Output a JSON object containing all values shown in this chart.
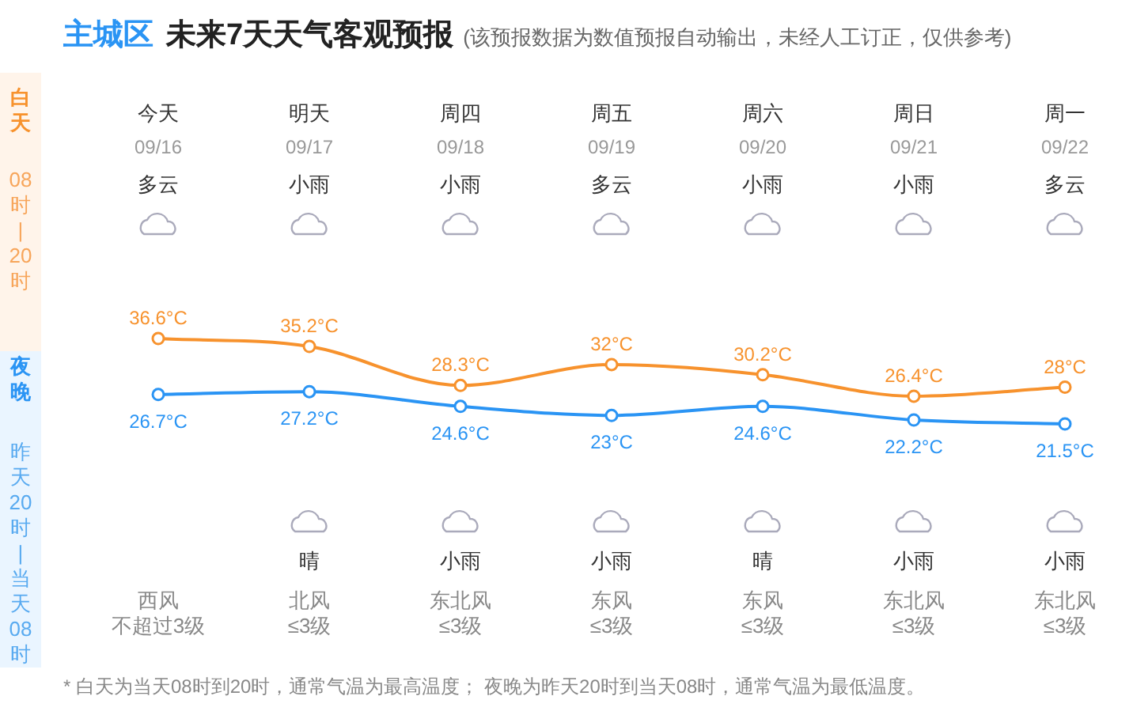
{
  "chart_data": {
    "type": "line",
    "title": "主城区 未来7天天气客观预报",
    "subtitle": "(该预报数据为数值预报自动输出，未经人工订正，仅供参考)",
    "categories": [
      "今天",
      "明天",
      "周四",
      "周五",
      "周六",
      "周日",
      "周一"
    ],
    "series": [
      {
        "color": "#f7922d",
        "values": [
          36.6,
          35.2,
          28.3,
          32,
          30.2,
          26.4,
          28
        ],
        "value_labels": [
          "36.6°C",
          "35.2°C",
          "28.3°C",
          "32°C",
          "30.2°C",
          "26.4°C",
          "28°C"
        ]
      },
      {
        "color": "#2a94f4",
        "values": [
          26.7,
          27.2,
          24.6,
          23,
          24.6,
          22.2,
          21.5
        ],
        "value_labels": [
          "26.7°C",
          "27.2°C",
          "24.6°C",
          "23°C",
          "24.6°C",
          "22.2°C",
          "21.5°C"
        ]
      }
    ],
    "marker": "circle",
    "line_style": "solid",
    "annotations": [
      "09/16",
      "09/17",
      "09/18",
      "09/19",
      "09/20",
      "09/21",
      "09/22",
      "多云",
      "小雨",
      "小雨",
      "多云",
      "小雨",
      "小雨",
      "多云",
      "晴",
      "小雨",
      "小雨",
      "晴",
      "小雨",
      "小雨",
      "西风",
      "北风",
      "东北风",
      "东风",
      "东风",
      "东北风",
      "东北风",
      "不超过3级",
      "≤3级",
      "≤3级",
      "≤3级",
      "≤3级",
      "≤3级",
      "≤3级",
      "白天",
      "08时|20时",
      "夜晚",
      "昨天20时|当天08时",
      "* 白天为当天08时到20时，通常气温为最高温度； 夜晚为昨天20时到当天08时，通常气温为最低温度。"
    ]
  }
}
